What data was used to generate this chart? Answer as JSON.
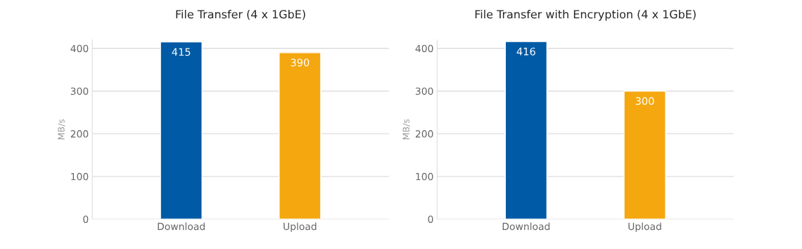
{
  "chart_data": [
    {
      "type": "bar",
      "title": "File Transfer (4 x 1GbE)",
      "ylabel": "MB/s",
      "categories": [
        "Download",
        "Upload"
      ],
      "values": [
        415,
        390
      ],
      "colors": [
        "#005aa5",
        "#f4a70f"
      ],
      "ylim": [
        0,
        420
      ],
      "yticks": [
        0,
        100,
        200,
        300,
        400
      ],
      "grid": "y",
      "data_labels": true
    },
    {
      "type": "bar",
      "title": "File Transfer with Encryption (4 x 1GbE)",
      "ylabel": "MB/s",
      "categories": [
        "Download",
        "Upload"
      ],
      "values": [
        416,
        300
      ],
      "colors": [
        "#005aa5",
        "#f4a70f"
      ],
      "ylim": [
        0,
        420
      ],
      "yticks": [
        0,
        100,
        200,
        300,
        400
      ],
      "grid": "y",
      "data_labels": true
    }
  ]
}
